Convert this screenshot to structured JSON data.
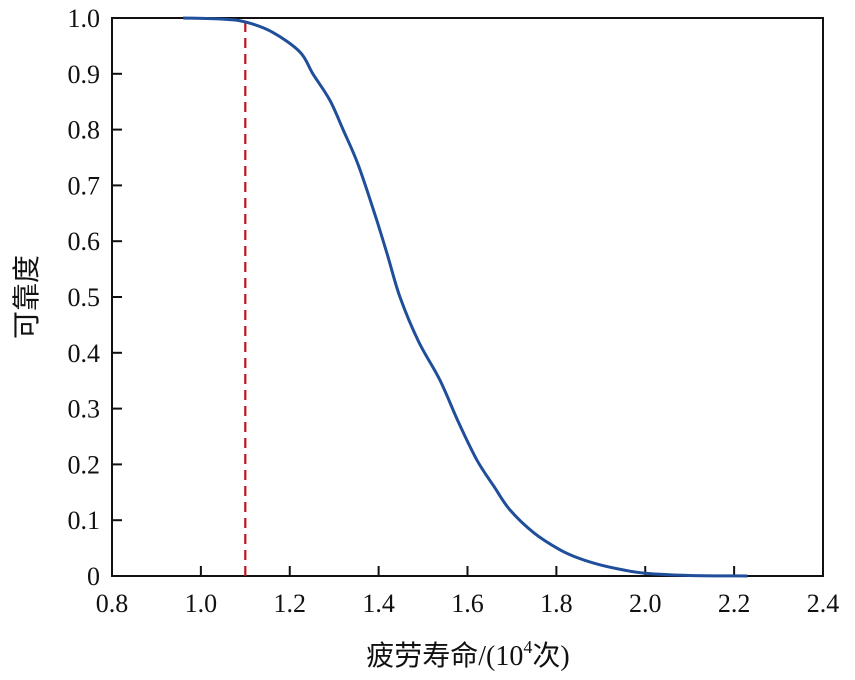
{
  "chart_data": {
    "type": "line",
    "title": "",
    "xlabel": "疲劳寿命/(10⁴次)",
    "xlabel_parts": {
      "prefix": "疲劳寿命/(10",
      "superscript": "4",
      "suffix": "次)"
    },
    "ylabel": "可靠度",
    "xlim": [
      0.8,
      2.4
    ],
    "ylim": [
      0,
      1.0
    ],
    "grid": false,
    "legend": null,
    "x_ticks": [
      0.8,
      1.0,
      1.2,
      1.4,
      1.6,
      1.8,
      2.0,
      2.2,
      2.4
    ],
    "x_tick_labels": [
      "0.8",
      "1.0",
      "1.2",
      "1.4",
      "1.6",
      "1.8",
      "2.0",
      "2.2",
      "2.4"
    ],
    "y_ticks": [
      0,
      0.1,
      0.2,
      0.3,
      0.4,
      0.5,
      0.6,
      0.7,
      0.8,
      0.9,
      1.0
    ],
    "y_tick_labels": [
      "0",
      "0.1",
      "0.2",
      "0.3",
      "0.4",
      "0.5",
      "0.6",
      "0.7",
      "0.8",
      "0.9",
      "1.0"
    ],
    "series": [
      {
        "name": "reliability-curve",
        "color": "#1f4e9a",
        "style": "solid",
        "x": [
          0.96,
          1.05,
          1.1,
          1.16,
          1.223,
          1.252,
          1.29,
          1.32,
          1.354,
          1.392,
          1.42,
          1.448,
          1.49,
          1.538,
          1.58,
          1.621,
          1.66,
          1.696,
          1.75,
          1.808,
          1.85,
          1.898,
          1.95,
          2.0,
          2.1,
          2.23
        ],
        "y": [
          1.0,
          0.998,
          0.993,
          0.975,
          0.939,
          0.9,
          0.853,
          0.8,
          0.737,
          0.647,
          0.575,
          0.5,
          0.42,
          0.351,
          0.275,
          0.208,
          0.16,
          0.118,
          0.077,
          0.047,
          0.032,
          0.02,
          0.011,
          0.005,
          0.001,
          0.0
        ]
      }
    ],
    "annotations": [
      {
        "type": "vline",
        "x": 1.1,
        "y_from": 0,
        "y_to": 0.993,
        "color": "#c0141c",
        "style": "dashed"
      }
    ]
  }
}
